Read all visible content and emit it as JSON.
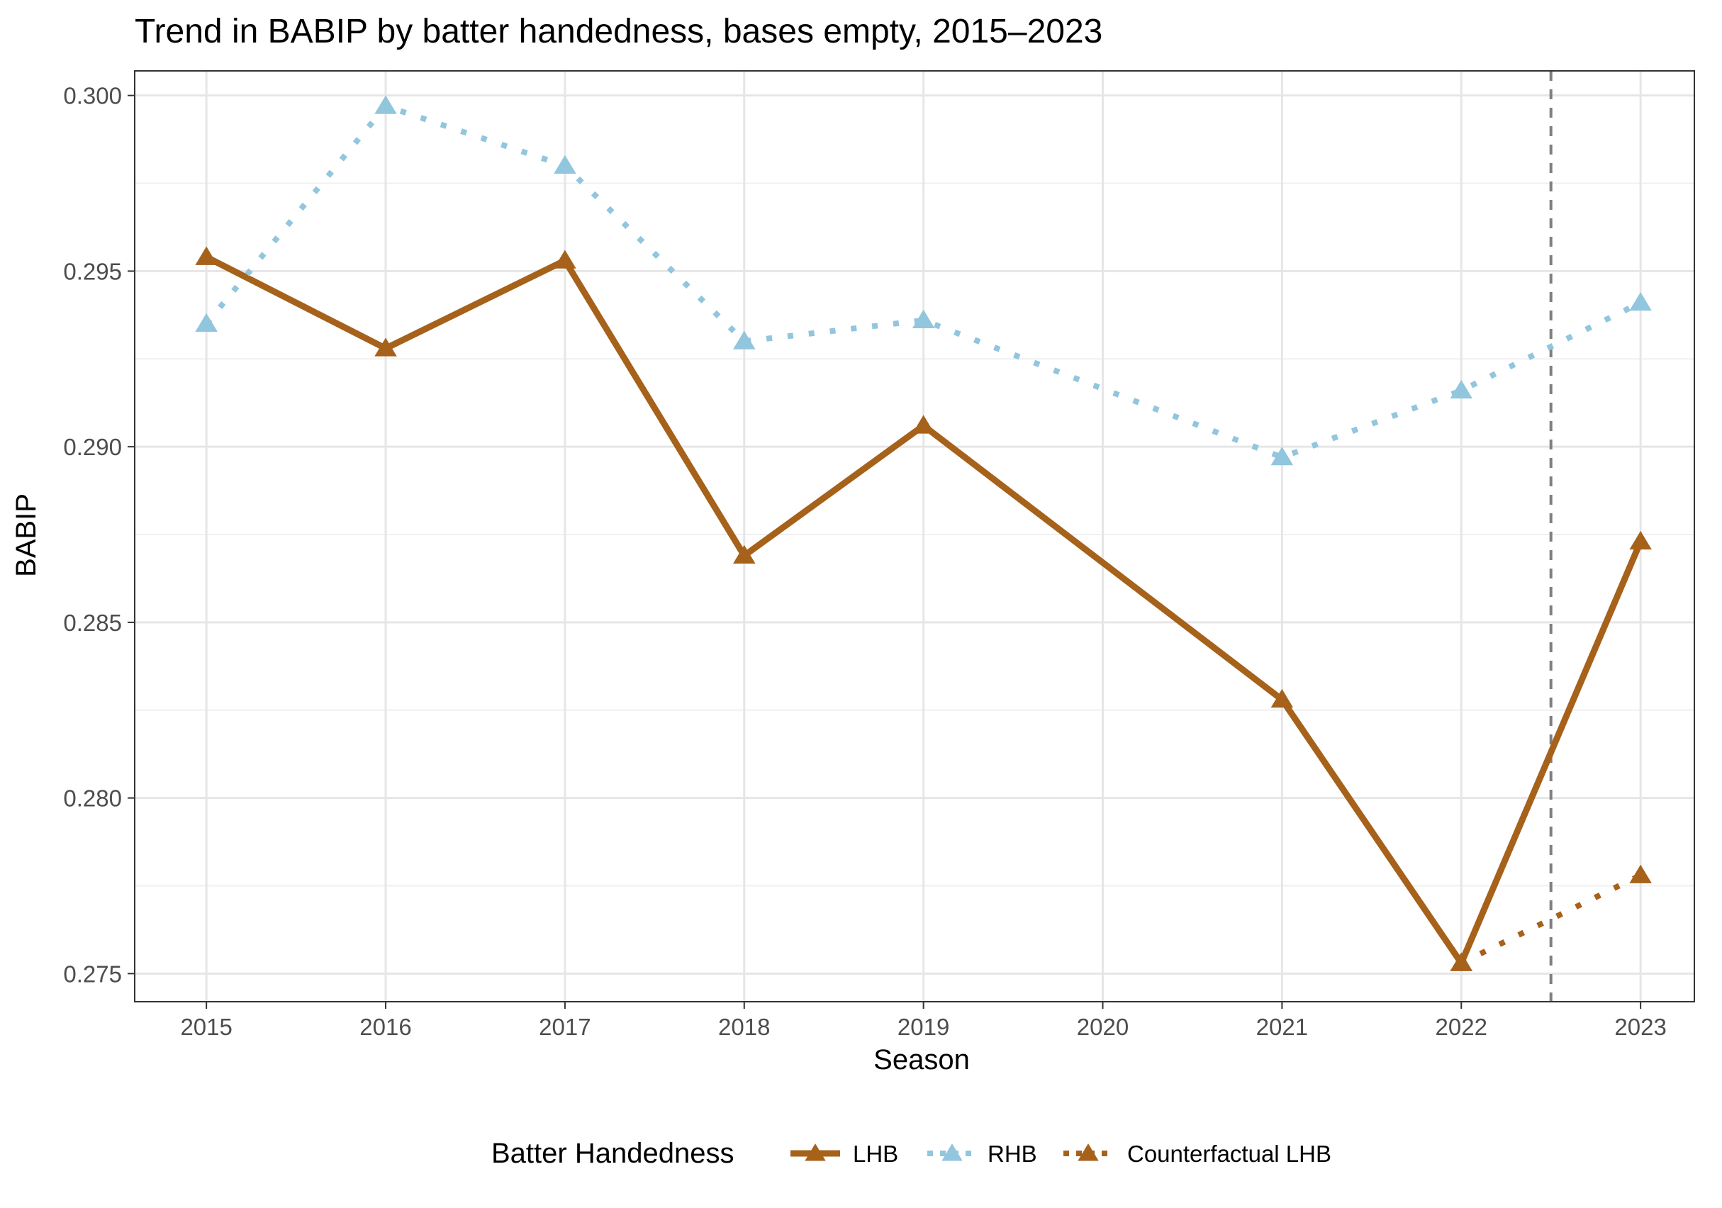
{
  "chart_data": {
    "type": "line",
    "title": "Trend in BABIP by batter handedness, bases empty, 2015–2023",
    "xlabel": "Season",
    "ylabel": "BABIP",
    "x": [
      2015,
      2016,
      2017,
      2018,
      2019,
      2020,
      2021,
      2022,
      2023
    ],
    "x_ticks": [
      "2015",
      "2016",
      "2017",
      "2018",
      "2019",
      "2020",
      "2021",
      "2022",
      "2023"
    ],
    "y_ticks": [
      "0.275",
      "0.280",
      "0.285",
      "0.290",
      "0.295",
      "0.300"
    ],
    "xlim": [
      2014.6,
      2023.3
    ],
    "ylim": [
      0.2742,
      0.3007
    ],
    "grid": true,
    "reference_line": {
      "x": 2022.5,
      "style": "dashed",
      "color": "#7f7f7f"
    },
    "legend": {
      "title": "Batter Handedness",
      "position": "bottom",
      "entries": [
        {
          "label": "LHB",
          "color": "#a6611a",
          "line": "solid"
        },
        {
          "label": "RHB",
          "color": "#92c5de",
          "line": "dotted"
        },
        {
          "label": "Counterfactual LHB",
          "color": "#a6611a",
          "line": "dotted"
        }
      ]
    },
    "series": [
      {
        "name": "LHB",
        "color": "#a6611a",
        "line": "solid",
        "marker": "triangle",
        "x": [
          2015,
          2016,
          2017,
          2018,
          2019,
          2021,
          2022,
          2023
        ],
        "values": [
          0.2954,
          0.2928,
          0.2953,
          0.2869,
          0.2906,
          0.2828,
          0.2753,
          0.2873
        ]
      },
      {
        "name": "RHB",
        "color": "#92c5de",
        "line": "dotted",
        "marker": "triangle",
        "x": [
          2015,
          2016,
          2017,
          2018,
          2019,
          2021,
          2022,
          2023
        ],
        "values": [
          0.2935,
          0.2997,
          0.298,
          0.293,
          0.2936,
          0.2897,
          0.2916,
          0.2941
        ]
      },
      {
        "name": "Counterfactual LHB",
        "color": "#a6611a",
        "line": "dotted",
        "marker": "triangle",
        "x": [
          2022,
          2023
        ],
        "values": [
          0.2753,
          0.2778
        ]
      }
    ]
  }
}
